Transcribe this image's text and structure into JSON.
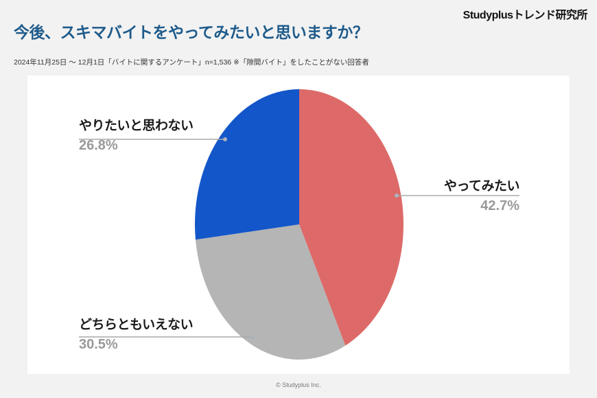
{
  "brand": "Studyplusトレンド研究所",
  "title": "今後、スキマバイトをやってみたいと思いますか？",
  "subtitle": "2024年11月25日 ～ 12月1日「バイトに関するアンケート」n=1,536 ※「隙間バイト」をしたことがない回答者",
  "footer": "© Studyplus Inc.",
  "colors": {
    "background": "#F2F2F2",
    "card": "#FFFFFF",
    "title_text": "#1E5B8B",
    "label_text": "#1A1A1A",
    "pct_text": "#999999",
    "leader_line": "#A8A8A8",
    "leader_dot": "#AAB2BA"
  },
  "chart_data": {
    "type": "pie",
    "title": "今後、スキマバイトをやってみたいと思いますか？",
    "unit": "%",
    "start_angle": "12-oclock",
    "direction": "clockwise",
    "legend_position": "outside-leader-labels",
    "slices": [
      {
        "label": "やってみたい",
        "value": 42.7,
        "pct_text": "42.7%",
        "color": "#DD6A68"
      },
      {
        "label": "どちらともいえない",
        "value": 30.5,
        "pct_text": "30.5%",
        "color": "#B5B5B5"
      },
      {
        "label": "やりたいと思わない",
        "value": 26.8,
        "pct_text": "26.8%",
        "color": "#1356C9"
      }
    ]
  }
}
